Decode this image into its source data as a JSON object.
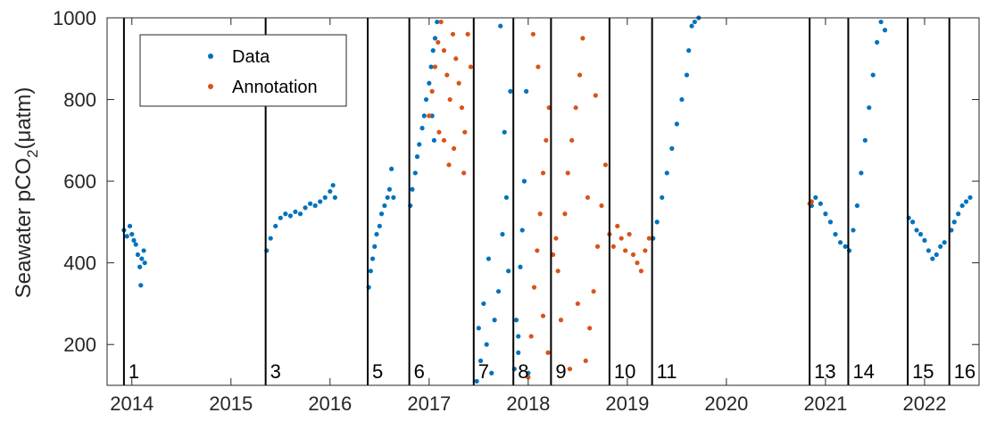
{
  "chart_data": {
    "type": "scatter",
    "ylabel": "Seawater pCO",
    "ylabel_sub": "2",
    "ylabel_unit": "(μatm)",
    "xlim": [
      2013.75,
      2022.55
    ],
    "ylim": [
      100,
      1000
    ],
    "x_ticks": [
      2014,
      2015,
      2016,
      2017,
      2018,
      2019,
      2020,
      2021,
      2022
    ],
    "y_ticks": [
      200,
      400,
      600,
      800,
      1000
    ],
    "grid": false,
    "legend": {
      "position": "top-left",
      "entries": [
        "Data",
        "Annotation"
      ]
    },
    "colors": {
      "Data": "#0072BD",
      "Annotation": "#D95319"
    },
    "segment_boundaries": [
      2013.92,
      2015.35,
      2016.38,
      2016.8,
      2017.45,
      2017.85,
      2018.23,
      2018.82,
      2019.25,
      2020.84,
      2021.23,
      2021.83,
      2022.25
    ],
    "segment_labels": [
      {
        "x": 2013.92,
        "label": "1"
      },
      {
        "x": 2015.35,
        "label": "3"
      },
      {
        "x": 2016.38,
        "label": "5"
      },
      {
        "x": 2016.8,
        "label": "6"
      },
      {
        "x": 2017.45,
        "label": "7"
      },
      {
        "x": 2017.85,
        "label": "8"
      },
      {
        "x": 2018.23,
        "label": "9"
      },
      {
        "x": 2018.82,
        "label": "10"
      },
      {
        "x": 2019.25,
        "label": "11"
      },
      {
        "x": 2020.84,
        "label": "13"
      },
      {
        "x": 2021.23,
        "label": "14"
      },
      {
        "x": 2021.83,
        "label": "15"
      },
      {
        "x": 2022.25,
        "label": "16"
      }
    ],
    "series": [
      {
        "name": "Data",
        "points": [
          [
            2013.92,
            480
          ],
          [
            2013.95,
            465
          ],
          [
            2013.98,
            490
          ],
          [
            2014.0,
            470
          ],
          [
            2014.02,
            455
          ],
          [
            2014.04,
            445
          ],
          [
            2014.06,
            420
          ],
          [
            2014.08,
            390
          ],
          [
            2014.09,
            345
          ],
          [
            2014.1,
            410
          ],
          [
            2014.12,
            430
          ],
          [
            2014.13,
            400
          ],
          [
            2015.36,
            430
          ],
          [
            2015.4,
            460
          ],
          [
            2015.45,
            490
          ],
          [
            2015.5,
            510
          ],
          [
            2015.55,
            520
          ],
          [
            2015.6,
            515
          ],
          [
            2015.65,
            525
          ],
          [
            2015.7,
            520
          ],
          [
            2015.75,
            535
          ],
          [
            2015.8,
            545
          ],
          [
            2015.85,
            540
          ],
          [
            2015.9,
            550
          ],
          [
            2015.95,
            560
          ],
          [
            2016.0,
            575
          ],
          [
            2016.03,
            590
          ],
          [
            2016.05,
            560
          ],
          [
            2016.39,
            340
          ],
          [
            2016.41,
            380
          ],
          [
            2016.43,
            410
          ],
          [
            2016.45,
            440
          ],
          [
            2016.47,
            470
          ],
          [
            2016.5,
            490
          ],
          [
            2016.52,
            520
          ],
          [
            2016.55,
            540
          ],
          [
            2016.58,
            560
          ],
          [
            2016.6,
            580
          ],
          [
            2016.62,
            630
          ],
          [
            2016.64,
            560
          ],
          [
            2016.81,
            540
          ],
          [
            2016.83,
            580
          ],
          [
            2016.86,
            620
          ],
          [
            2016.88,
            660
          ],
          [
            2016.9,
            690
          ],
          [
            2016.93,
            730
          ],
          [
            2016.95,
            760
          ],
          [
            2016.97,
            800
          ],
          [
            2017.0,
            840
          ],
          [
            2017.02,
            880
          ],
          [
            2017.04,
            920
          ],
          [
            2017.06,
            950
          ],
          [
            2017.08,
            990
          ],
          [
            2017.03,
            760
          ],
          [
            2017.05,
            700
          ],
          [
            2017.48,
            110
          ],
          [
            2017.5,
            240
          ],
          [
            2017.52,
            160
          ],
          [
            2017.55,
            300
          ],
          [
            2017.58,
            200
          ],
          [
            2017.6,
            410
          ],
          [
            2017.63,
            130
          ],
          [
            2017.66,
            260
          ],
          [
            2017.7,
            330
          ],
          [
            2017.74,
            470
          ],
          [
            2017.78,
            560
          ],
          [
            2017.8,
            380
          ],
          [
            2017.82,
            820
          ],
          [
            2017.76,
            720
          ],
          [
            2017.72,
            980
          ],
          [
            2017.86,
            140
          ],
          [
            2017.88,
            260
          ],
          [
            2017.9,
            180
          ],
          [
            2017.92,
            390
          ],
          [
            2017.94,
            480
          ],
          [
            2017.96,
            600
          ],
          [
            2017.98,
            820
          ],
          [
            2017.9,
            220
          ],
          [
            2018.0,
            130
          ],
          [
            2019.26,
            460
          ],
          [
            2019.3,
            500
          ],
          [
            2019.35,
            560
          ],
          [
            2019.4,
            620
          ],
          [
            2019.45,
            680
          ],
          [
            2019.5,
            740
          ],
          [
            2019.55,
            800
          ],
          [
            2019.6,
            860
          ],
          [
            2019.62,
            920
          ],
          [
            2019.65,
            980
          ],
          [
            2019.68,
            990
          ],
          [
            2019.72,
            1000
          ],
          [
            2021.24,
            430
          ],
          [
            2021.28,
            480
          ],
          [
            2021.32,
            540
          ],
          [
            2021.36,
            620
          ],
          [
            2021.4,
            700
          ],
          [
            2021.44,
            780
          ],
          [
            2021.48,
            860
          ],
          [
            2021.52,
            940
          ],
          [
            2021.56,
            990
          ],
          [
            2021.6,
            970
          ],
          [
            2020.86,
            540
          ],
          [
            2020.9,
            560
          ],
          [
            2020.95,
            545
          ],
          [
            2021.0,
            520
          ],
          [
            2021.05,
            500
          ],
          [
            2021.1,
            470
          ],
          [
            2021.15,
            450
          ],
          [
            2021.2,
            440
          ],
          [
            2021.84,
            510
          ],
          [
            2021.88,
            500
          ],
          [
            2021.92,
            480
          ],
          [
            2021.96,
            470
          ],
          [
            2022.0,
            455
          ],
          [
            2022.04,
            430
          ],
          [
            2022.08,
            410
          ],
          [
            2022.12,
            420
          ],
          [
            2022.16,
            440
          ],
          [
            2022.2,
            450
          ],
          [
            2022.27,
            480
          ],
          [
            2022.3,
            500
          ],
          [
            2022.34,
            520
          ],
          [
            2022.38,
            540
          ],
          [
            2022.42,
            550
          ],
          [
            2022.46,
            560
          ]
        ]
      },
      {
        "name": "Annotation",
        "points": [
          [
            2017.0,
            760
          ],
          [
            2017.03,
            820
          ],
          [
            2017.06,
            880
          ],
          [
            2017.09,
            940
          ],
          [
            2017.12,
            990
          ],
          [
            2017.15,
            920
          ],
          [
            2017.18,
            860
          ],
          [
            2017.21,
            800
          ],
          [
            2017.24,
            960
          ],
          [
            2017.27,
            900
          ],
          [
            2017.3,
            840
          ],
          [
            2017.33,
            780
          ],
          [
            2017.36,
            720
          ],
          [
            2017.39,
            960
          ],
          [
            2017.42,
            880
          ],
          [
            2017.15,
            700
          ],
          [
            2017.25,
            680
          ],
          [
            2017.35,
            620
          ],
          [
            2017.2,
            640
          ],
          [
            2017.1,
            720
          ],
          [
            2018.0,
            120
          ],
          [
            2018.03,
            220
          ],
          [
            2018.06,
            340
          ],
          [
            2018.09,
            430
          ],
          [
            2018.12,
            520
          ],
          [
            2018.15,
            620
          ],
          [
            2018.18,
            700
          ],
          [
            2018.21,
            780
          ],
          [
            2018.05,
            960
          ],
          [
            2018.1,
            880
          ],
          [
            2018.15,
            270
          ],
          [
            2018.2,
            180
          ],
          [
            2018.25,
            420
          ],
          [
            2018.28,
            460
          ],
          [
            2018.3,
            380
          ],
          [
            2018.33,
            260
          ],
          [
            2018.37,
            520
          ],
          [
            2018.4,
            620
          ],
          [
            2018.44,
            700
          ],
          [
            2018.48,
            780
          ],
          [
            2018.52,
            860
          ],
          [
            2018.55,
            950
          ],
          [
            2018.58,
            160
          ],
          [
            2018.62,
            240
          ],
          [
            2018.66,
            330
          ],
          [
            2018.7,
            440
          ],
          [
            2018.74,
            540
          ],
          [
            2018.78,
            640
          ],
          [
            2018.42,
            140
          ],
          [
            2018.5,
            300
          ],
          [
            2018.6,
            560
          ],
          [
            2018.68,
            810
          ],
          [
            2018.82,
            470
          ],
          [
            2018.86,
            440
          ],
          [
            2018.9,
            490
          ],
          [
            2018.94,
            460
          ],
          [
            2018.98,
            430
          ],
          [
            2019.02,
            470
          ],
          [
            2019.06,
            420
          ],
          [
            2019.1,
            400
          ],
          [
            2019.14,
            380
          ],
          [
            2019.18,
            430
          ],
          [
            2019.22,
            460
          ],
          [
            2020.84,
            545
          ],
          [
            2020.86,
            550
          ]
        ]
      }
    ]
  }
}
